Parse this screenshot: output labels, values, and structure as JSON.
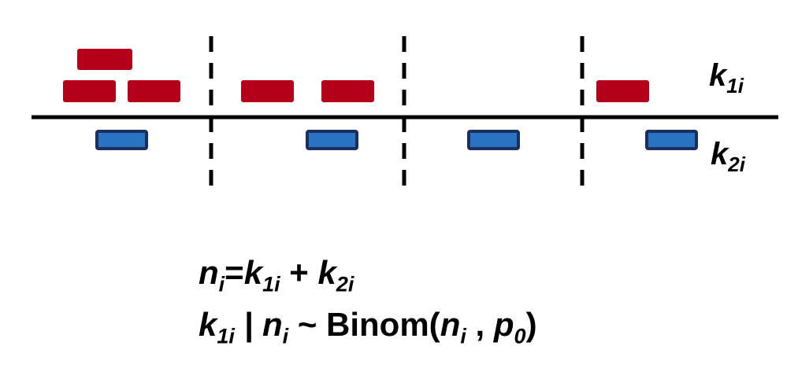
{
  "labels": {
    "k1": {
      "base": "k",
      "sub": "1i"
    },
    "k2": {
      "base": "k",
      "sub": "2i"
    }
  },
  "formula1": {
    "n": "n",
    "n_sub": "i",
    "eq": "=",
    "k1": "k",
    "k1_sub": "1i",
    "plus": " + ",
    "k2": "k",
    "k2_sub": "2i"
  },
  "formula2": {
    "k1": "k",
    "k1_sub": "1i",
    "bar": " | ",
    "n": "n",
    "n_sub": "i",
    "tilde": " ~ ",
    "func": "Binom(",
    "arg_n": "n",
    "arg_n_sub": "i",
    "comma": " , ",
    "p": "p",
    "p_sub": "0",
    "close": ")"
  },
  "colors": {
    "red_event": "#b5001a",
    "blue_event_fill": "#2a72c2",
    "blue_event_border": "#1a2f5e",
    "axis": "#000000"
  }
}
